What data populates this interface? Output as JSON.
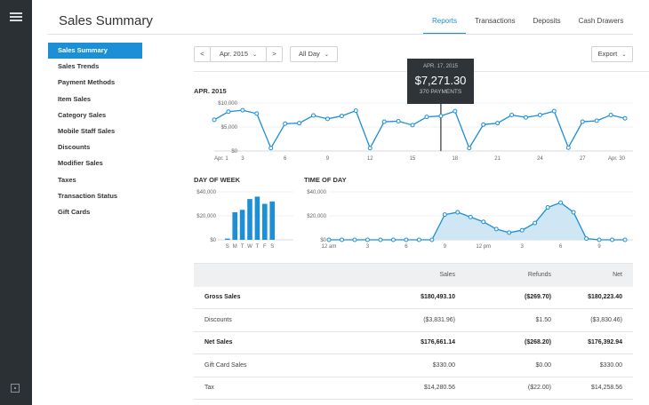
{
  "header": {
    "title": "Sales Summary",
    "tabs": [
      {
        "label": "Reports",
        "active": true
      },
      {
        "label": "Transactions"
      },
      {
        "label": "Deposits"
      },
      {
        "label": "Cash Drawers"
      }
    ]
  },
  "sidebar": {
    "items": [
      {
        "label": "Sales Summary",
        "active": true
      },
      {
        "label": "Sales Trends"
      },
      {
        "label": "Payment Methods"
      },
      {
        "label": "Item Sales"
      },
      {
        "label": "Category Sales"
      },
      {
        "label": "Mobile Staff Sales"
      },
      {
        "label": "Discounts"
      },
      {
        "label": "Modifier Sales"
      },
      {
        "label": "Taxes"
      },
      {
        "label": "Transaction Status"
      },
      {
        "label": "Gift Cards"
      }
    ]
  },
  "controls": {
    "prev": "<",
    "period": "Apr. 2015",
    "next": ">",
    "time_range": "All Day",
    "export": "Export"
  },
  "tooltip": {
    "date": "APR. 17, 2015",
    "value": "$7,271.30",
    "payments": "370 PAYMENTS"
  },
  "chart_data": [
    {
      "type": "line",
      "title": "APR. 2015",
      "x": [
        1,
        2,
        3,
        4,
        5,
        6,
        7,
        8,
        9,
        10,
        11,
        12,
        13,
        14,
        15,
        16,
        17,
        18,
        19,
        20,
        21,
        22,
        23,
        24,
        25,
        26,
        27,
        28,
        29,
        30
      ],
      "values": [
        6500,
        8200,
        8500,
        7800,
        600,
        5700,
        5800,
        7400,
        6700,
        7300,
        8400,
        600,
        6100,
        6200,
        5400,
        7100,
        7300,
        8300,
        600,
        5500,
        5800,
        7500,
        7000,
        7500,
        8300,
        700,
        6100,
        6300,
        7500,
        6800
      ],
      "tick_labels": [
        "Apr. 1",
        "3",
        "6",
        "9",
        "12",
        "15",
        "18",
        "21",
        "24",
        "27",
        "Apr. 30"
      ],
      "y_ticks": [
        "$10,000",
        "$5,000",
        "$0"
      ],
      "ylim": [
        0,
        10000
      ],
      "color": "#1c8fd6"
    },
    {
      "type": "bar",
      "title": "DAY OF WEEK",
      "categories": [
        "S",
        "M",
        "T",
        "W",
        "T",
        "F",
        "S"
      ],
      "values": [
        1000,
        23000,
        25000,
        34000,
        36000,
        30000,
        32000
      ],
      "y_ticks": [
        "$40,000",
        "$20,000",
        "$0"
      ],
      "ylim": [
        0,
        40000
      ],
      "color": "#1c8fd6"
    },
    {
      "type": "area",
      "title": "TIME OF DAY",
      "x": [
        0,
        1,
        2,
        3,
        4,
        5,
        6,
        7,
        8,
        9,
        10,
        11,
        12,
        13,
        14,
        15,
        16,
        17,
        18,
        19,
        20,
        21,
        22,
        23
      ],
      "values": [
        0,
        0,
        0,
        0,
        0,
        0,
        0,
        0,
        0,
        21000,
        23000,
        19000,
        15000,
        9000,
        6000,
        8000,
        14000,
        27000,
        31000,
        23000,
        1000,
        0,
        0,
        0
      ],
      "tick_labels": [
        "12 am",
        "3",
        "6",
        "9",
        "12 pm",
        "3",
        "6",
        "9"
      ],
      "y_ticks": [
        "$40,000",
        "$20,000",
        "$0"
      ],
      "ylim": [
        0,
        40000
      ],
      "color": "#1c8fd6",
      "fill": "#cfe6f5"
    }
  ],
  "table": {
    "columns": [
      "",
      "Sales",
      "Refunds",
      "Net"
    ],
    "rows": [
      {
        "label": "Gross Sales",
        "sales": "$180,493.10",
        "refunds": "($269.70)",
        "net": "$180,223.40",
        "bold": true
      },
      {
        "label": "Discounts",
        "sales": "($3,831.96)",
        "refunds": "$1.50",
        "net": "($3,830.46)"
      },
      {
        "label": "Net Sales",
        "sales": "$176,661.14",
        "refunds": "($268.20)",
        "net": "$176,392.94",
        "bold": true
      },
      {
        "label": "Gift Card Sales",
        "sales": "$330.00",
        "refunds": "$0.00",
        "net": "$330.00"
      },
      {
        "label": "Tax",
        "sales": "$14,280.56",
        "refunds": "($22.00)",
        "net": "$14,258.56"
      }
    ]
  }
}
